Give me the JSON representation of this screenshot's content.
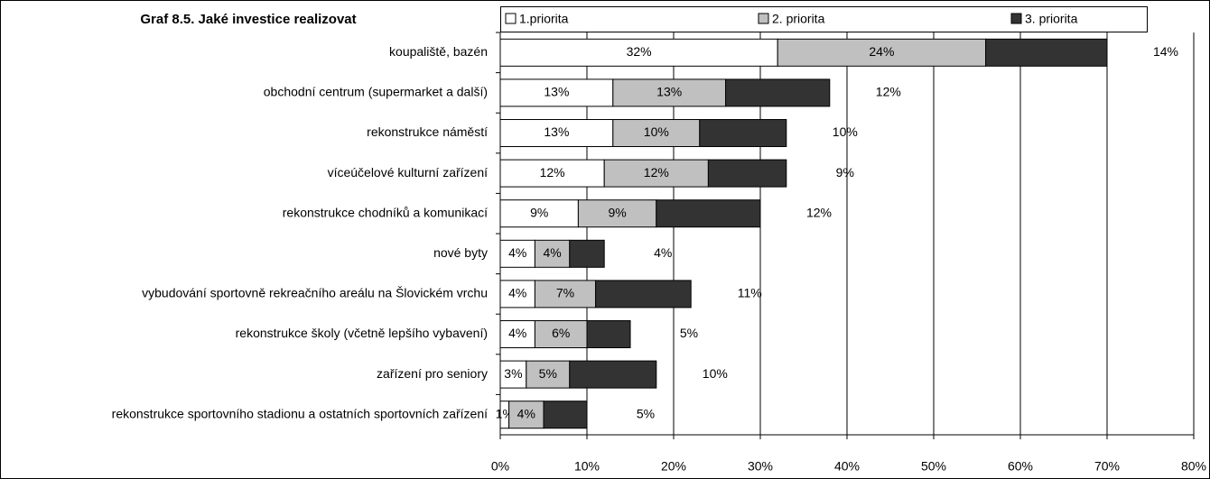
{
  "chart_data": {
    "type": "stacked_barh",
    "title": "Graf 8.5. Jaké investice realizovat",
    "categories": [
      "koupaliště, bazén",
      "obchodní centrum (supermarket a další)",
      "rekonstrukce náměstí",
      "víceúčelové kulturní zařízení",
      "rekonstrukce chodníků a komunikací ",
      "nové byty",
      "vybudování sportovně rekreačního areálu na Šlovickém vrchu",
      "rekonstrukce školy (včetně lepšího vybavení)",
      "zařízení pro seniory",
      "rekonstrukce sportovního stadionu a ostatních sportovních zařízení"
    ],
    "series": [
      {
        "name": "1.priorita",
        "color": "#ffffff",
        "values": [
          32,
          13,
          13,
          12,
          9,
          4,
          4,
          4,
          3,
          1
        ],
        "value_labels": [
          "32%",
          "13%",
          "13%",
          "12%",
          "9%",
          "4%",
          "4%",
          "4%",
          "3%",
          "1%"
        ]
      },
      {
        "name": "2. priorita",
        "color": "#c0c0c0",
        "values": [
          24,
          13,
          10,
          12,
          9,
          4,
          7,
          6,
          5,
          4
        ],
        "value_labels": [
          "24%",
          "13%",
          "10%",
          "12%",
          "9%",
          "4%",
          "7%",
          "6%",
          "5%",
          "4%"
        ]
      },
      {
        "name": "3. priorita",
        "color": "#333333",
        "values": [
          14,
          12,
          10,
          9,
          12,
          4,
          11,
          5,
          10,
          5
        ],
        "value_labels": [
          "14%",
          "12%",
          "10%",
          "9%",
          "12%",
          "4%",
          "11%",
          "5%",
          "10%",
          "5%"
        ]
      }
    ],
    "xlim": [
      0,
      80
    ],
    "xticks": [
      {
        "value": 0,
        "label": "0%"
      },
      {
        "value": 10,
        "label": "10%"
      },
      {
        "value": 20,
        "label": "20%"
      },
      {
        "value": 30,
        "label": "30%"
      },
      {
        "value": 40,
        "label": "40%"
      },
      {
        "value": 50,
        "label": "50%"
      },
      {
        "value": 60,
        "label": "60%"
      },
      {
        "value": 70,
        "label": "70%"
      },
      {
        "value": 80,
        "label": "80%"
      }
    ],
    "grid": true,
    "legend": "top"
  }
}
